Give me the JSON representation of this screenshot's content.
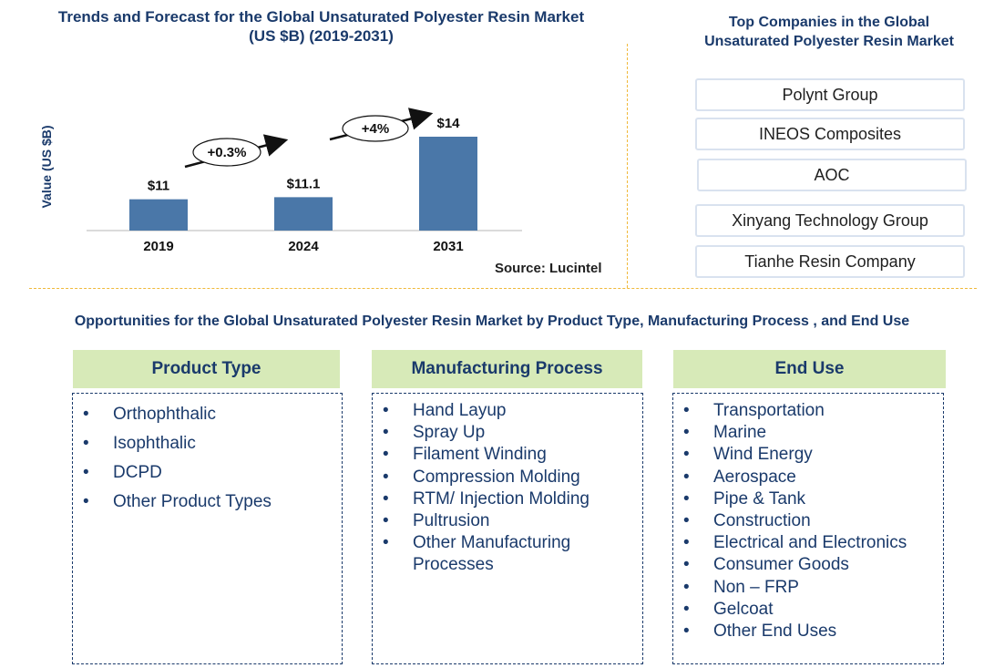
{
  "chart_data": {
    "type": "bar",
    "title_lines": [
      "Trends and Forecast for the Global Unsaturated Polyester Resin Market",
      "(US $B) (2019-2031)"
    ],
    "ylabel": "Value (US $B)",
    "categories": [
      "2019",
      "2024",
      "2031"
    ],
    "values": [
      11,
      11.1,
      14
    ],
    "value_labels": [
      "$11",
      "$11.1",
      "$14"
    ],
    "ylim": [
      0,
      15
    ],
    "bar_color": "#4a77a8",
    "growth_callouts": [
      {
        "label": "+0.3%",
        "from": "2019",
        "to": "2024"
      },
      {
        "label": "+4%",
        "from": "2024",
        "to": "2031"
      }
    ],
    "source": "Source: Lucintel"
  },
  "companies": {
    "title_lines": [
      "Top Companies in the Global",
      "Unsaturated Polyester Resin Market"
    ],
    "items": [
      "Polynt Group",
      "INEOS Composites",
      "AOC",
      "Xinyang Technology Group",
      "Tianhe Resin Company"
    ]
  },
  "opportunities": {
    "title": "Opportunities for the Global Unsaturated Polyester Resin Market by Product Type, Manufacturing Process , and End Use",
    "bullet": "•",
    "categories": [
      {
        "heading": "Product Type",
        "items": [
          "Orthophthalic",
          "Isophthalic",
          "DCPD",
          "Other Product Types"
        ]
      },
      {
        "heading": "Manufacturing Process",
        "items": [
          "Hand Layup",
          "Spray Up",
          "Filament Winding",
          "Compression Molding",
          "RTM/ Injection Molding",
          "Pultrusion",
          "Other Manufacturing Processes"
        ]
      },
      {
        "heading": "End Use",
        "items": [
          "Transportation",
          "Marine",
          "Wind Energy",
          "Aerospace",
          "Pipe & Tank",
          "Construction",
          "Electrical and Electronics",
          "Consumer Goods",
          "Non – FRP",
          "Gelcoat",
          "Other End Uses"
        ]
      }
    ]
  },
  "colors": {
    "title": "#1a3a6b",
    "header_fill": "#d7eab8",
    "divider": "#f0b93a"
  }
}
